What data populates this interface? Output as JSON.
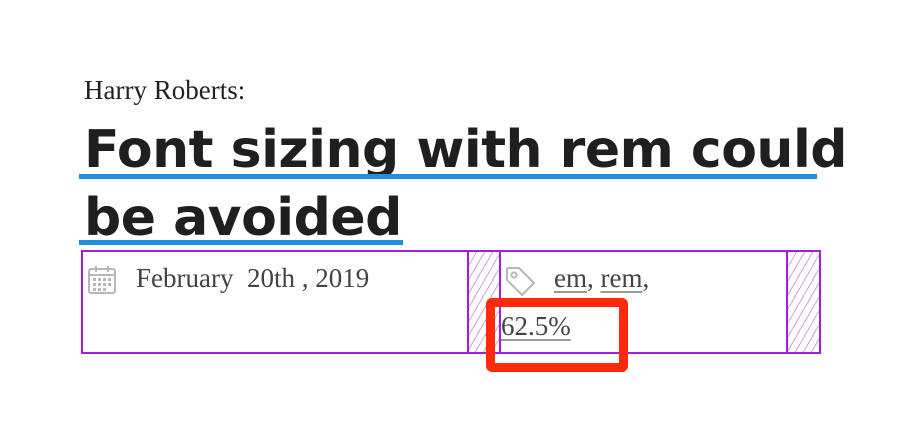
{
  "article": {
    "author": "Harry Roberts:",
    "title_line1": "Font sizing with rem could",
    "title_line2": "be avoided"
  },
  "meta": {
    "date": "February  20th , 2019",
    "tags": [
      {
        "label": "em"
      },
      {
        "label": "rem"
      },
      {
        "label": "62.5%"
      }
    ],
    "separator": ", "
  },
  "colors": {
    "title_underline": "#1e8fe0",
    "grid_outline": "#a21de0",
    "highlight": "#ff2a0c"
  },
  "icons": {
    "date": "calendar-icon",
    "tags": "tag-icon"
  }
}
